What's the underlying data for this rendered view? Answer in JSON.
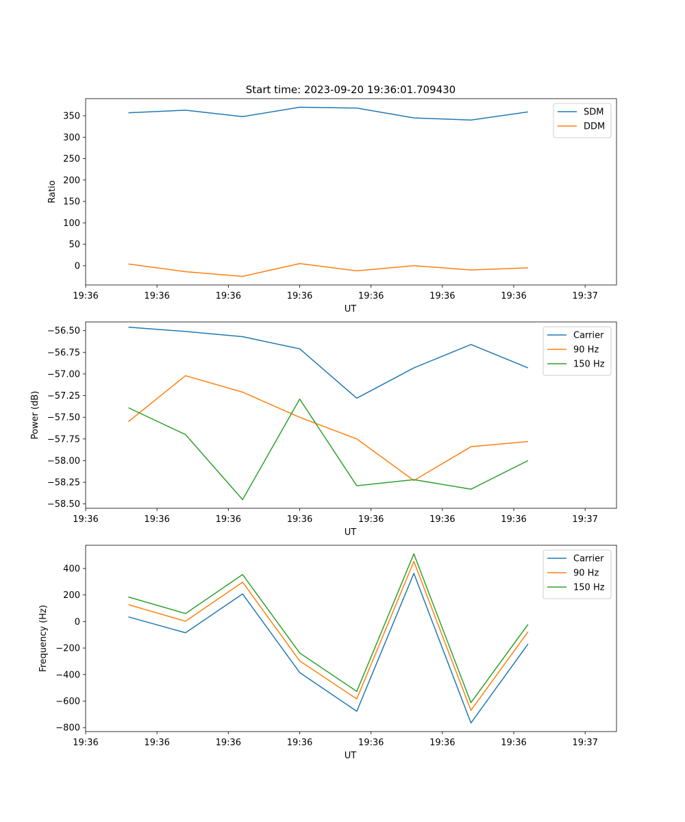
{
  "figure": {
    "title": "Start time: 2023-09-20 19:36:01.709430"
  },
  "chart_data": [
    {
      "type": "line",
      "title": "Start time: 2023-09-20 19:36:01.709430",
      "xlabel": "UT",
      "ylabel": "Ratio",
      "x_tick_labels": [
        "19:36",
        "19:36",
        "19:36",
        "19:36",
        "19:36",
        "19:36",
        "19:36"
      ],
      "x_last_tick_label": "19:37",
      "xlim": [
        0,
        9.3
      ],
      "x": [
        0.75,
        1.75,
        2.75,
        3.75,
        4.75,
        5.75,
        6.75,
        7.75
      ],
      "ylim": [
        -45,
        390
      ],
      "y_ticks": [
        0,
        50,
        100,
        150,
        200,
        250,
        300,
        350
      ],
      "y_tick_labels": [
        "0",
        "50",
        "100",
        "150",
        "200",
        "250",
        "300",
        "350"
      ],
      "legend_position": "top-right",
      "series": [
        {
          "name": "SDM",
          "color": "#1f77b4",
          "values": [
            357,
            363,
            348,
            370,
            368,
            345,
            340,
            359
          ]
        },
        {
          "name": "DDM",
          "color": "#ff7f0e",
          "values": [
            4,
            -14,
            -25,
            5,
            -12,
            0,
            -10,
            -5
          ]
        }
      ]
    },
    {
      "type": "line",
      "title": "",
      "xlabel": "UT",
      "ylabel": "Power (dB)",
      "x_tick_labels": [
        "19:36",
        "19:36",
        "19:36",
        "19:36",
        "19:36",
        "19:36",
        "19:36"
      ],
      "x_last_tick_label": "19:37",
      "xlim": [
        0,
        9.3
      ],
      "x": [
        0.75,
        1.75,
        2.75,
        3.75,
        4.75,
        5.75,
        6.75,
        7.75
      ],
      "ylim": [
        -58.55,
        -56.4
      ],
      "y_ticks": [
        -58.5,
        -58.25,
        -58.0,
        -57.75,
        -57.5,
        -57.25,
        -57.0,
        -56.75,
        -56.5
      ],
      "y_tick_labels": [
        "−58.50",
        "−58.25",
        "−58.00",
        "−57.75",
        "−57.50",
        "−57.25",
        "−57.00",
        "−56.75",
        "−56.50"
      ],
      "legend_position": "top-right",
      "series": [
        {
          "name": "Carrier",
          "color": "#1f77b4",
          "values": [
            -56.46,
            -56.51,
            -56.57,
            -56.71,
            -57.28,
            -56.93,
            -56.66,
            -56.93
          ]
        },
        {
          "name": "90 Hz",
          "color": "#ff7f0e",
          "values": [
            -57.55,
            -57.02,
            -57.21,
            -57.5,
            -57.75,
            -58.23,
            -57.84,
            -57.78
          ]
        },
        {
          "name": "150 Hz",
          "color": "#2ca02c",
          "values": [
            -57.39,
            -57.7,
            -58.45,
            -57.29,
            -58.29,
            -58.22,
            -58.33,
            -58.0
          ]
        }
      ]
    },
    {
      "type": "line",
      "title": "",
      "xlabel": "UT",
      "ylabel": "Frequency (Hz)",
      "x_tick_labels": [
        "19:36",
        "19:36",
        "19:36",
        "19:36",
        "19:36",
        "19:36",
        "19:36"
      ],
      "x_last_tick_label": "19:37",
      "xlim": [
        0,
        9.3
      ],
      "x": [
        0.75,
        1.75,
        2.75,
        3.75,
        4.75,
        5.75,
        6.75,
        7.75
      ],
      "ylim": [
        -830,
        575
      ],
      "y_ticks": [
        -800,
        -600,
        -400,
        -200,
        0,
        200,
        400
      ],
      "y_tick_labels": [
        "−800",
        "−600",
        "−400",
        "−200",
        "0",
        "200",
        "400"
      ],
      "legend_position": "top-right",
      "series": [
        {
          "name": "Carrier",
          "color": "#1f77b4",
          "values": [
            35,
            -85,
            208,
            -385,
            -677,
            363,
            -765,
            -170
          ]
        },
        {
          "name": "90 Hz",
          "color": "#ff7f0e",
          "values": [
            127,
            2,
            297,
            -297,
            -584,
            453,
            -670,
            -78
          ]
        },
        {
          "name": "150 Hz",
          "color": "#2ca02c",
          "values": [
            185,
            60,
            354,
            -237,
            -527,
            510,
            -612,
            -22
          ]
        }
      ]
    }
  ]
}
